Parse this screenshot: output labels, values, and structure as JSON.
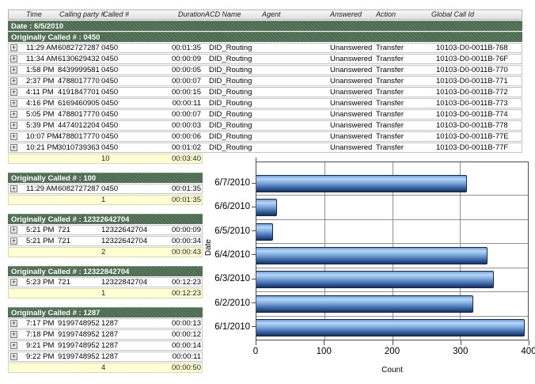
{
  "report": {
    "columns": [
      "Time",
      "Calling party #",
      "Called #",
      "Duration",
      "ACD Name",
      "Agent",
      "Answered",
      "Action",
      "Global Call Id"
    ],
    "date_band": "Date : 6/5/2010",
    "groups": [
      {
        "title": "Originally Called # : 0450",
        "full": true,
        "rows": [
          [
            "11:29 AM",
            "6082727287",
            "0450",
            "00:01:35",
            "DID_Routing",
            "",
            "Unanswered",
            "Transfer",
            "10103-D0-0011B-768"
          ],
          [
            "11:34 AM",
            "6130629432",
            "0450",
            "00:00:09",
            "DID_Routing",
            "",
            "Unanswered",
            "Transfer",
            "10103-D0-0011B-76F"
          ],
          [
            "1:58 PM",
            "8439999581",
            "0450",
            "00:00:05",
            "DID_Routing",
            "",
            "Unanswered",
            "Transfer",
            "10103-D0-0011B-770"
          ],
          [
            "2:37 PM",
            "4788017770",
            "0450",
            "00:00:07",
            "DID_Routing",
            "",
            "Unanswered",
            "Transfer",
            "10103-D0-0011B-771"
          ],
          [
            "4:11 PM",
            "4191847701",
            "0450",
            "00:00:15",
            "DID_Routing",
            "",
            "Unanswered",
            "Transfer",
            "10103-D0-0011B-772"
          ],
          [
            "4:16 PM",
            "6169460905",
            "0450",
            "00:00:11",
            "DID_Routing",
            "",
            "Unanswered",
            "Transfer",
            "10103-D0-0011B-773"
          ],
          [
            "5:05 PM",
            "4788017770",
            "0450",
            "00:00:07",
            "DID_Routing",
            "",
            "Unanswered",
            "Transfer",
            "10103-D0-0011B-774"
          ],
          [
            "5:39 PM",
            "4474012204",
            "0450",
            "00:00:03",
            "DID_Routing",
            "",
            "Unanswered",
            "Transfer",
            "10103-D0-0011B-778"
          ],
          [
            "10:07 PM",
            "4788017770",
            "0450",
            "00:00:06",
            "DID_Routing",
            "",
            "Unanswered",
            "Transfer",
            "10103-D0-0011B-77E"
          ],
          [
            "10:21 PM",
            "3010739363",
            "0450",
            "00:01:02",
            "DID_Routing",
            "",
            "Unanswered",
            "Transfer",
            "10103-D0-0011B-77F"
          ]
        ],
        "summary_count": "10",
        "summary_total": "00:03:40"
      },
      {
        "title": "Originally Called # : 100",
        "full": false,
        "rows": [
          [
            "11:29 AM",
            "6082727287",
            "0450",
            "00:01:35"
          ]
        ],
        "summary_count": "1",
        "summary_total": "00:01:35"
      },
      {
        "title": "Originally Called # : 12322642704",
        "full": false,
        "rows": [
          [
            "5:21 PM",
            "721",
            "12322642704",
            "00:00:09"
          ],
          [
            "5:21 PM",
            "721",
            "12322642704",
            "00:00:34"
          ]
        ],
        "summary_count": "2",
        "summary_total": "00:00:43"
      },
      {
        "title": "Originally Called # : 12322842704",
        "full": false,
        "rows": [
          [
            "5:23 PM",
            "721",
            "12322842704",
            "00:12:23"
          ]
        ],
        "summary_count": "1",
        "summary_total": "00:12:23"
      },
      {
        "title": "Originally Called # : 1287",
        "full": false,
        "rows": [
          [
            "7:17 PM",
            "9199748952",
            "1287",
            "00:00:13"
          ],
          [
            "7:18 PM",
            "9199748952",
            "1287",
            "00:00:12"
          ],
          [
            "9:21 PM",
            "9199748952",
            "1287",
            "00:00:14"
          ],
          [
            "9:22 PM",
            "9199748952",
            "1287",
            "00:00:11"
          ]
        ],
        "summary_count": "4",
        "summary_total": "00:00:50"
      }
    ]
  },
  "chart_data": {
    "type": "bar",
    "orientation": "horizontal",
    "categories": [
      "6/7/2010",
      "6/6/2010",
      "6/5/2010",
      "6/4/2010",
      "6/3/2010",
      "6/2/2010",
      "6/1/2010"
    ],
    "values": [
      310,
      30,
      25,
      340,
      350,
      320,
      395
    ],
    "xlabel": "Count",
    "ylabel": "Date",
    "xlim": [
      0,
      400
    ],
    "xticks": [
      0,
      100,
      200,
      300,
      400
    ],
    "grid": true,
    "legend": false
  },
  "colors": {
    "group_band_green": "#4b6a4f",
    "summary_row_yellow": "#ffffca",
    "bar_blue": "#4f81c7",
    "grid_gray": "#909090"
  }
}
